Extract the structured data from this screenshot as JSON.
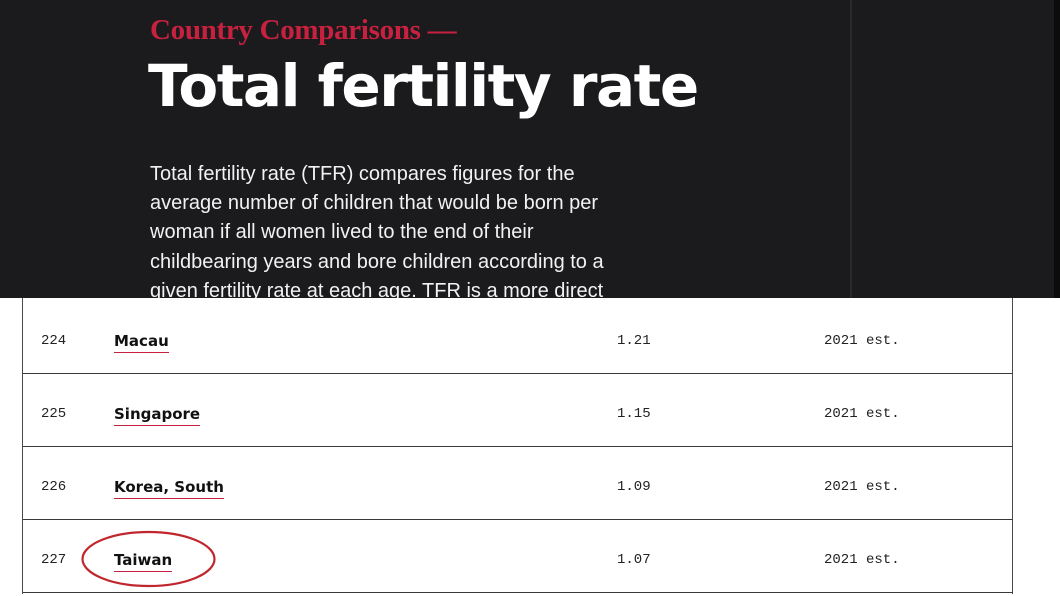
{
  "header": {
    "kicker": "Country Comparisons —",
    "title": "Total fertility rate",
    "description_lines": [
      "Total fertility rate (TFR) compares figures for the",
      "average number of children that would be born per",
      "woman if all women lived to the end of their",
      "childbearing years and bore children according to a",
      "given fertility rate at each age. TFR is a more direct"
    ]
  },
  "table": {
    "rows": [
      {
        "rank": "224",
        "country": "Macau",
        "value": "1.21",
        "date": "2021 est."
      },
      {
        "rank": "225",
        "country": "Singapore",
        "value": "1.15",
        "date": "2021 est."
      },
      {
        "rank": "226",
        "country": "Korea, South",
        "value": "1.09",
        "date": "2021 est."
      },
      {
        "rank": "227",
        "country": "Taiwan",
        "value": "1.07",
        "date": "2021 est."
      }
    ]
  },
  "colors": {
    "hero_background": "#1b1a1d",
    "accent_red": "#c8213f",
    "highlight_circle": "#c0272d"
  },
  "annotation": {
    "circled_row": "227"
  }
}
